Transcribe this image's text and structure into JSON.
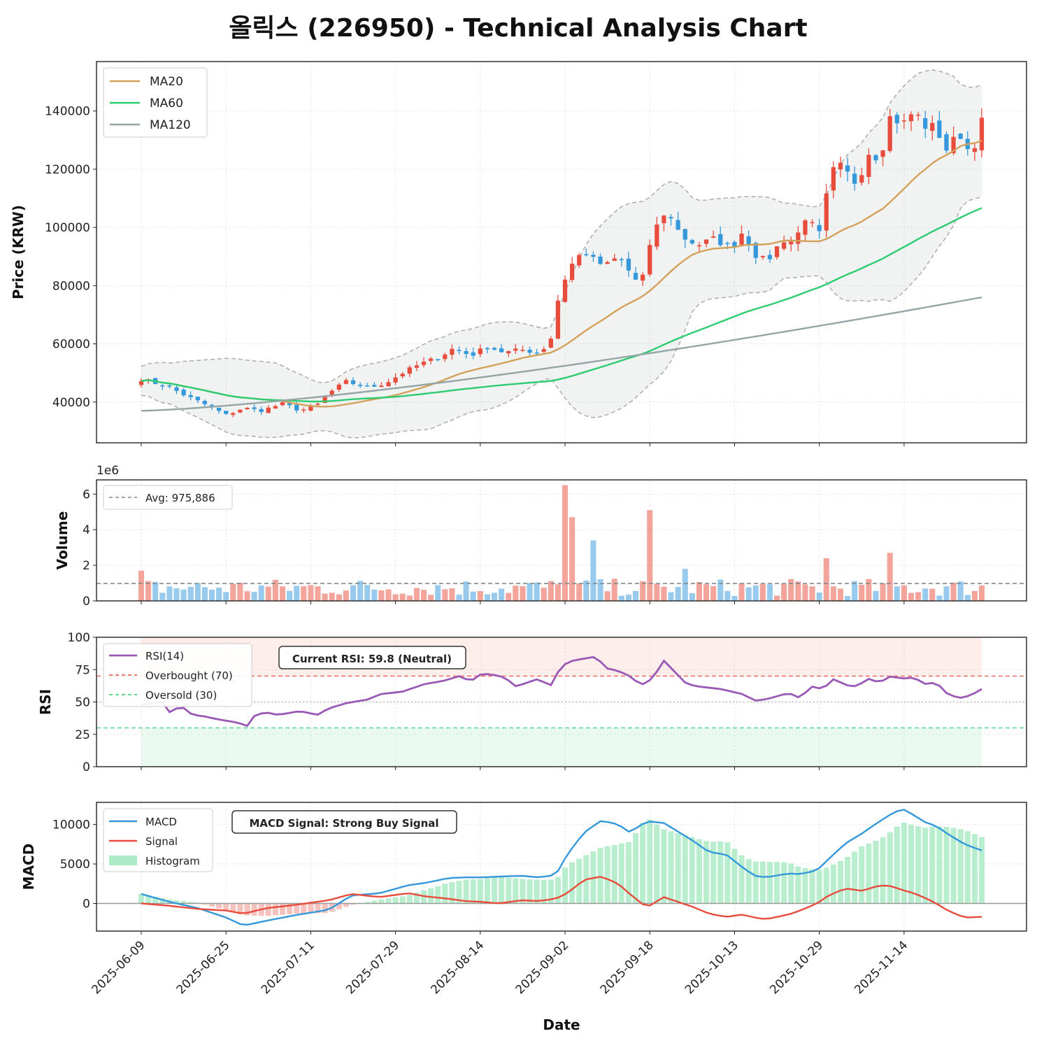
{
  "colors": {
    "up": "#e74c3c",
    "down": "#3498db",
    "ma20": "#d4a15a",
    "ma60": "#2ecc71",
    "ma120": "#95a5a6",
    "rsi": "#9b59b6",
    "macd": "#3498db",
    "signal": "#e74c3c",
    "histPos": "#abebc6",
    "histNeg": "#f5b7b1",
    "volUp": "#f1948a",
    "volDown": "#85c1e9",
    "overbought": "#e74c3c",
    "oversold": "#2ecc71",
    "signalText": "#2ecc71"
  },
  "chart_data": {
    "type": "candlestick",
    "title": "올릭스 (226950) - Technical Analysis Chart",
    "xlabel": "Date",
    "date_ticks": [
      "2025-06-09",
      "2025-06-25",
      "2025-07-11",
      "2025-07-29",
      "2025-08-14",
      "2025-09-02",
      "2025-09-18",
      "2025-10-13",
      "2025-10-29",
      "2025-11-14"
    ],
    "num_days": 120,
    "close_anchors": [
      [
        0,
        48000
      ],
      [
        5,
        45000
      ],
      [
        8,
        42000
      ],
      [
        12,
        38500
      ],
      [
        15,
        35500
      ],
      [
        18,
        38000
      ],
      [
        21,
        37000
      ],
      [
        25,
        39500
      ],
      [
        28,
        37000
      ],
      [
        31,
        39000
      ],
      [
        33,
        43000
      ],
      [
        36,
        47000
      ],
      [
        40,
        45000
      ],
      [
        43,
        46500
      ],
      [
        46,
        50000
      ],
      [
        49,
        53000
      ],
      [
        52,
        55000
      ],
      [
        55,
        58500
      ],
      [
        58,
        56000
      ],
      [
        61,
        59000
      ],
      [
        64,
        57000
      ],
      [
        67,
        58000
      ],
      [
        70,
        57000
      ],
      [
        72,
        60500
      ],
      [
        73,
        72000
      ],
      [
        74,
        80000
      ],
      [
        76,
        88000
      ],
      [
        78,
        92000
      ],
      [
        80,
        88000
      ],
      [
        82,
        87000
      ],
      [
        84,
        90000
      ],
      [
        87,
        82000
      ],
      [
        89,
        84000
      ],
      [
        90,
        100000
      ],
      [
        93,
        105000
      ],
      [
        95,
        97000
      ],
      [
        98,
        94000
      ],
      [
        101,
        96000
      ],
      [
        104,
        93000
      ],
      [
        106,
        99000
      ],
      [
        108,
        91000
      ],
      [
        110,
        88000
      ],
      [
        113,
        96000
      ],
      [
        115,
        95000
      ],
      [
        117,
        104000
      ],
      [
        119,
        98000
      ],
      [
        120,
        97000
      ],
      [
        121,
        118000
      ],
      [
        123,
        121000
      ],
      [
        126,
        115000
      ],
      [
        128,
        126000
      ],
      [
        130,
        124000
      ],
      [
        132,
        139000
      ],
      [
        134,
        135000
      ],
      [
        136,
        140000
      ],
      [
        138,
        135000
      ],
      [
        140,
        134000
      ],
      [
        142,
        126000
      ],
      [
        144,
        133000
      ],
      [
        146,
        125000
      ],
      [
        148,
        136000
      ]
    ],
    "price_panel": {
      "ylabel": "Price (KRW)",
      "yticks": [
        40000,
        60000,
        80000,
        100000,
        120000,
        140000
      ],
      "ylim": [
        26000,
        157000
      ],
      "legend": [
        "MA20",
        "MA60",
        "MA120"
      ],
      "ma120_range": [
        37000,
        76000
      ]
    },
    "volume_panel": {
      "ylabel": "Volume",
      "yticks": [
        0,
        2,
        4,
        6
      ],
      "ylim": [
        0,
        6.8
      ],
      "scale_label": "1e6",
      "avg": 0.975886,
      "avg_label": "Avg: 975,886",
      "spikes": [
        [
          75,
          6.5
        ],
        [
          76,
          4.7
        ],
        [
          79,
          3.4
        ],
        [
          90,
          5.1
        ],
        [
          121,
          2.4
        ],
        [
          132,
          2.7
        ],
        [
          96,
          1.8
        ],
        [
          0,
          1.7
        ]
      ]
    },
    "rsi_panel": {
      "ylabel": "RSI",
      "yticks": [
        0,
        25,
        50,
        75,
        100
      ],
      "ylim": [
        0,
        100
      ],
      "legend": [
        "RSI(14)",
        "Overbought (70)",
        "Oversold (30)"
      ],
      "overbought": 70,
      "oversold": 30,
      "current_label": "Current RSI: 59.8 (Neutral)",
      "anchors": [
        [
          0,
          48
        ],
        [
          4,
          50
        ],
        [
          5,
          42
        ],
        [
          7,
          47
        ],
        [
          9,
          40
        ],
        [
          11,
          39
        ],
        [
          13,
          37
        ],
        [
          17,
          34
        ],
        [
          19,
          31
        ],
        [
          20,
          40
        ],
        [
          22,
          42
        ],
        [
          24,
          40
        ],
        [
          28,
          43
        ],
        [
          31,
          40
        ],
        [
          33,
          45
        ],
        [
          36,
          49
        ],
        [
          40,
          52
        ],
        [
          42,
          56
        ],
        [
          46,
          58
        ],
        [
          50,
          64
        ],
        [
          53,
          66
        ],
        [
          56,
          70
        ],
        [
          58,
          66
        ],
        [
          60,
          72
        ],
        [
          62,
          71
        ],
        [
          64,
          69
        ],
        [
          66,
          62
        ],
        [
          68,
          65
        ],
        [
          70,
          68
        ],
        [
          72,
          62
        ],
        [
          74,
          78
        ],
        [
          76,
          82
        ],
        [
          80,
          85
        ],
        [
          82,
          76
        ],
        [
          84,
          74
        ],
        [
          86,
          70
        ],
        [
          88,
          63
        ],
        [
          90,
          68
        ],
        [
          92,
          82
        ],
        [
          94,
          73
        ],
        [
          96,
          64
        ],
        [
          98,
          62
        ],
        [
          102,
          60
        ],
        [
          106,
          56
        ],
        [
          108,
          51
        ],
        [
          110,
          52
        ],
        [
          114,
          57
        ],
        [
          116,
          53
        ],
        [
          118,
          62
        ],
        [
          120,
          60
        ],
        [
          122,
          68
        ],
        [
          124,
          63
        ],
        [
          126,
          62
        ],
        [
          128,
          68
        ],
        [
          130,
          65
        ],
        [
          132,
          70
        ],
        [
          134,
          68
        ],
        [
          136,
          69
        ],
        [
          138,
          64
        ],
        [
          140,
          65
        ],
        [
          142,
          56
        ],
        [
          144,
          53
        ],
        [
          146,
          55
        ],
        [
          148,
          60
        ]
      ]
    },
    "macd_panel": {
      "ylabel": "MACD",
      "yticks": [
        0,
        5000,
        10000
      ],
      "ylim": [
        -3500,
        12800
      ],
      "legend": [
        "MACD",
        "Signal",
        "Histogram"
      ],
      "signal_text": "MACD Signal: Strong Buy Signal",
      "macd_anchors": [
        [
          0,
          1200
        ],
        [
          5,
          200
        ],
        [
          10,
          -600
        ],
        [
          15,
          -1800
        ],
        [
          18,
          -2800
        ],
        [
          22,
          -2200
        ],
        [
          27,
          -1500
        ],
        [
          33,
          -800
        ],
        [
          37,
          1000
        ],
        [
          42,
          1300
        ],
        [
          47,
          2300
        ],
        [
          50,
          2600
        ],
        [
          54,
          3200
        ],
        [
          57,
          3300
        ],
        [
          60,
          3300
        ],
        [
          63,
          3400
        ],
        [
          67,
          3500
        ],
        [
          70,
          3300
        ],
        [
          73,
          3600
        ],
        [
          75,
          6200
        ],
        [
          78,
          9000
        ],
        [
          81,
          10500
        ],
        [
          84,
          10000
        ],
        [
          86,
          9000
        ],
        [
          89,
          10400
        ],
        [
          92,
          10200
        ],
        [
          97,
          8000
        ],
        [
          100,
          6500
        ],
        [
          103,
          6200
        ],
        [
          106,
          4500
        ],
        [
          108,
          3500
        ],
        [
          110,
          3300
        ],
        [
          114,
          3800
        ],
        [
          116,
          3700
        ],
        [
          119,
          4200
        ],
        [
          121,
          5600
        ],
        [
          124,
          7600
        ],
        [
          127,
          8900
        ],
        [
          130,
          10400
        ],
        [
          132,
          11300
        ],
        [
          134,
          12000
        ],
        [
          136,
          11200
        ],
        [
          138,
          10300
        ],
        [
          140,
          9800
        ],
        [
          142,
          8800
        ],
        [
          145,
          7500
        ],
        [
          148,
          6700
        ]
      ],
      "signal_anchors": [
        [
          0,
          0
        ],
        [
          5,
          -300
        ],
        [
          10,
          -700
        ],
        [
          15,
          -900
        ],
        [
          18,
          -1300
        ],
        [
          22,
          -600
        ],
        [
          27,
          -200
        ],
        [
          33,
          400
        ],
        [
          37,
          1200
        ],
        [
          42,
          800
        ],
        [
          47,
          1300
        ],
        [
          50,
          900
        ],
        [
          54,
          600
        ],
        [
          57,
          300
        ],
        [
          60,
          200
        ],
        [
          63,
          0
        ],
        [
          67,
          400
        ],
        [
          70,
          300
        ],
        [
          73,
          600
        ],
        [
          75,
          1300
        ],
        [
          78,
          3000
        ],
        [
          81,
          3400
        ],
        [
          84,
          2500
        ],
        [
          86,
          1200
        ],
        [
          89,
          -500
        ],
        [
          92,
          800
        ],
        [
          97,
          -400
        ],
        [
          100,
          -1300
        ],
        [
          103,
          -1700
        ],
        [
          106,
          -1400
        ],
        [
          108,
          -1800
        ],
        [
          110,
          -2000
        ],
        [
          114,
          -1400
        ],
        [
          116,
          -900
        ],
        [
          119,
          0
        ],
        [
          121,
          1000
        ],
        [
          124,
          1900
        ],
        [
          127,
          1600
        ],
        [
          130,
          2300
        ],
        [
          132,
          2200
        ],
        [
          134,
          1700
        ],
        [
          136,
          1300
        ],
        [
          138,
          700
        ],
        [
          140,
          0
        ],
        [
          142,
          -900
        ],
        [
          145,
          -1800
        ],
        [
          148,
          -1700
        ]
      ]
    }
  }
}
